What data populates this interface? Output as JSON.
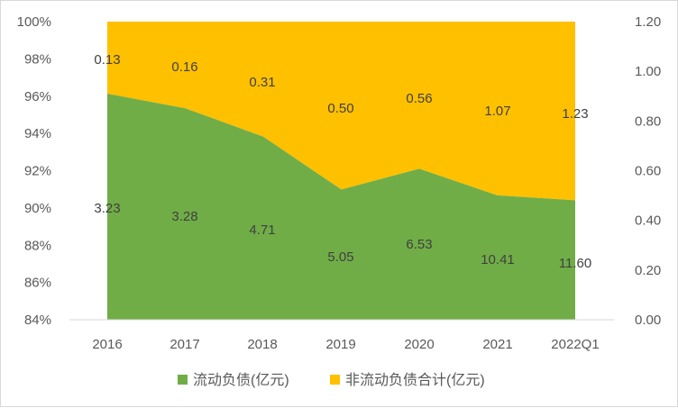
{
  "chart_data": {
    "type": "area",
    "stacked_percent": true,
    "categories": [
      "2016",
      "2017",
      "2018",
      "2019",
      "2020",
      "2021",
      "2022Q1"
    ],
    "series": [
      {
        "name": "流动负债(亿元)",
        "color": "#70ad47",
        "values": [
          3.23,
          3.28,
          4.71,
          5.05,
          6.53,
          10.41,
          11.6
        ],
        "labels": [
          "3.23",
          "3.28",
          "4.71",
          "5.05",
          "6.53",
          "10.41",
          "11.60"
        ]
      },
      {
        "name": "非流动负债合计(亿元)",
        "color": "#ffc000",
        "values": [
          0.13,
          0.16,
          0.31,
          0.5,
          0.56,
          1.07,
          1.23
        ],
        "labels": [
          "0.13",
          "0.16",
          "0.31",
          "0.50",
          "0.56",
          "1.07",
          "1.23"
        ]
      }
    ],
    "ylim": [
      0.84,
      1.0
    ],
    "y_ticks": [
      "84%",
      "86%",
      "88%",
      "90%",
      "92%",
      "94%",
      "96%",
      "98%",
      "100%"
    ],
    "y2lim": [
      0,
      1.2
    ],
    "y2_ticks": [
      "0.00",
      "0.20",
      "0.40",
      "0.60",
      "0.80",
      "1.00",
      "1.20"
    ],
    "legend": "bottom",
    "grid": false
  }
}
